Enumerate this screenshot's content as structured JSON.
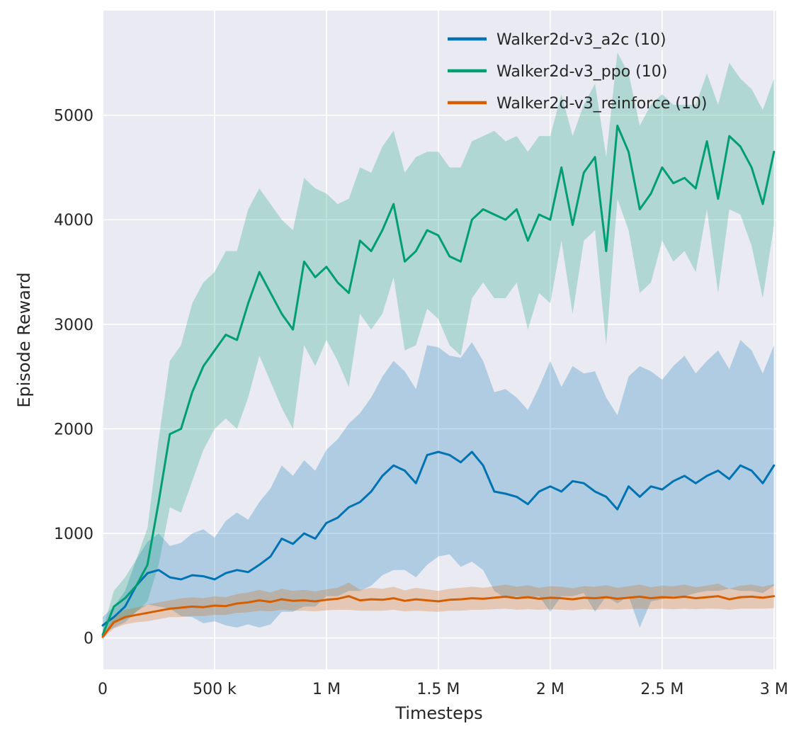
{
  "figure": {
    "plot_bg": "#eaeaf2",
    "grid_color": "#ffffff",
    "text_color": "#262626",
    "band_opacity": 0.25,
    "line_width": 3
  },
  "chart_data": {
    "type": "line",
    "title": "",
    "xlabel": "Timesteps",
    "ylabel": "Episode Reward",
    "grid": true,
    "legend_position": "upper right",
    "xlim": [
      0,
      3010000
    ],
    "ylim": [
      -300,
      6000
    ],
    "xticks": {
      "values": [
        0,
        500000,
        1000000,
        1500000,
        2000000,
        2500000,
        3000000
      ],
      "labels": [
        "0",
        "500 k",
        "1 M",
        "1.5 M",
        "2 M",
        "2.5 M",
        "3 M"
      ]
    },
    "yticks": {
      "values": [
        0,
        1000,
        2000,
        3000,
        4000,
        5000
      ],
      "labels": [
        "0",
        "1000",
        "2000",
        "3000",
        "4000",
        "5000"
      ]
    },
    "x": [
      0,
      50000,
      100000,
      150000,
      200000,
      250000,
      300000,
      350000,
      400000,
      450000,
      500000,
      550000,
      600000,
      650000,
      700000,
      750000,
      800000,
      850000,
      900000,
      950000,
      1000000,
      1050000,
      1100000,
      1150000,
      1200000,
      1250000,
      1300000,
      1350000,
      1400000,
      1450000,
      1500000,
      1550000,
      1600000,
      1650000,
      1700000,
      1750000,
      1800000,
      1850000,
      1900000,
      1950000,
      2000000,
      2050000,
      2100000,
      2150000,
      2200000,
      2250000,
      2300000,
      2350000,
      2400000,
      2450000,
      2500000,
      2550000,
      2600000,
      2650000,
      2700000,
      2750000,
      2800000,
      2850000,
      2900000,
      2950000,
      3000000
    ],
    "series": [
      {
        "id": "a2c",
        "name": "Walker2d-v3_a2c (10)",
        "color": "#0173b2",
        "mean": [
          120,
          200,
          300,
          500,
          620,
          650,
          580,
          560,
          600,
          590,
          560,
          620,
          650,
          630,
          700,
          780,
          950,
          900,
          1000,
          950,
          1100,
          1150,
          1250,
          1300,
          1400,
          1550,
          1650,
          1600,
          1480,
          1750,
          1780,
          1750,
          1680,
          1780,
          1650,
          1400,
          1380,
          1350,
          1280,
          1400,
          1450,
          1400,
          1500,
          1480,
          1400,
          1350,
          1230,
          1450,
          1350,
          1450,
          1420,
          1500,
          1550,
          1480,
          1550,
          1600,
          1520,
          1650,
          1600,
          1480,
          1650
        ],
        "spread": [
          80,
          100,
          150,
          250,
          300,
          350,
          300,
          350,
          400,
          450,
          400,
          500,
          550,
          500,
          600,
          650,
          700,
          650,
          700,
          650,
          700,
          750,
          800,
          850,
          900,
          950,
          1000,
          950,
          900,
          1050,
          1000,
          950,
          1000,
          1050,
          1000,
          950,
          1000,
          950,
          900,
          1000,
          1200,
          1000,
          1100,
          1050,
          1150,
          950,
          900,
          1050,
          1250,
          1100,
          1050,
          1100,
          1150,
          1050,
          1100,
          1150,
          1050,
          1200,
          1150,
          1050,
          1150
        ]
      },
      {
        "id": "ppo",
        "name": "Walker2d-v3_ppo (10)",
        "color": "#029e73",
        "mean": [
          30,
          300,
          380,
          500,
          700,
          1300,
          1950,
          2000,
          2350,
          2600,
          2750,
          2900,
          2850,
          3200,
          3500,
          3300,
          3100,
          2950,
          3600,
          3450,
          3550,
          3400,
          3300,
          3800,
          3700,
          3900,
          4150,
          3600,
          3700,
          3900,
          3850,
          3650,
          3600,
          4000,
          4100,
          4050,
          4000,
          4100,
          3800,
          4050,
          4000,
          4500,
          3950,
          4450,
          4600,
          3700,
          4900,
          4650,
          4100,
          4250,
          4500,
          4350,
          4400,
          4300,
          4750,
          4200,
          4800,
          4700,
          4500,
          4150,
          4650
        ],
        "spread": [
          50,
          150,
          200,
          250,
          350,
          600,
          700,
          800,
          850,
          800,
          750,
          800,
          850,
          900,
          800,
          850,
          900,
          950,
          800,
          850,
          700,
          750,
          900,
          700,
          750,
          800,
          700,
          850,
          900,
          750,
          800,
          850,
          900,
          750,
          700,
          800,
          750,
          700,
          850,
          750,
          800,
          700,
          850,
          650,
          700,
          900,
          700,
          750,
          800,
          850,
          700,
          750,
          700,
          800,
          650,
          900,
          700,
          650,
          750,
          900,
          700
        ]
      },
      {
        "id": "reinforce",
        "name": "Walker2d-v3_reinforce (10)",
        "color": "#d55e00",
        "mean": [
          10,
          150,
          200,
          220,
          240,
          260,
          280,
          290,
          300,
          295,
          310,
          305,
          330,
          340,
          360,
          345,
          370,
          355,
          360,
          350,
          365,
          375,
          400,
          360,
          370,
          365,
          380,
          355,
          370,
          360,
          350,
          365,
          370,
          380,
          375,
          385,
          395,
          380,
          390,
          375,
          385,
          380,
          370,
          385,
          380,
          390,
          375,
          385,
          395,
          380,
          390,
          385,
          395,
          380,
          390,
          400,
          370,
          390,
          395,
          385,
          400
        ],
        "spread": [
          10,
          60,
          70,
          70,
          80,
          80,
          80,
          90,
          90,
          85,
          90,
          85,
          90,
          95,
          100,
          90,
          100,
          95,
          100,
          95,
          100,
          105,
          130,
          100,
          110,
          105,
          110,
          100,
          110,
          105,
          100,
          105,
          110,
          110,
          105,
          110,
          115,
          110,
          115,
          105,
          110,
          110,
          105,
          110,
          110,
          115,
          105,
          110,
          115,
          105,
          110,
          110,
          115,
          105,
          110,
          120,
          100,
          110,
          115,
          105,
          115
        ]
      }
    ]
  }
}
